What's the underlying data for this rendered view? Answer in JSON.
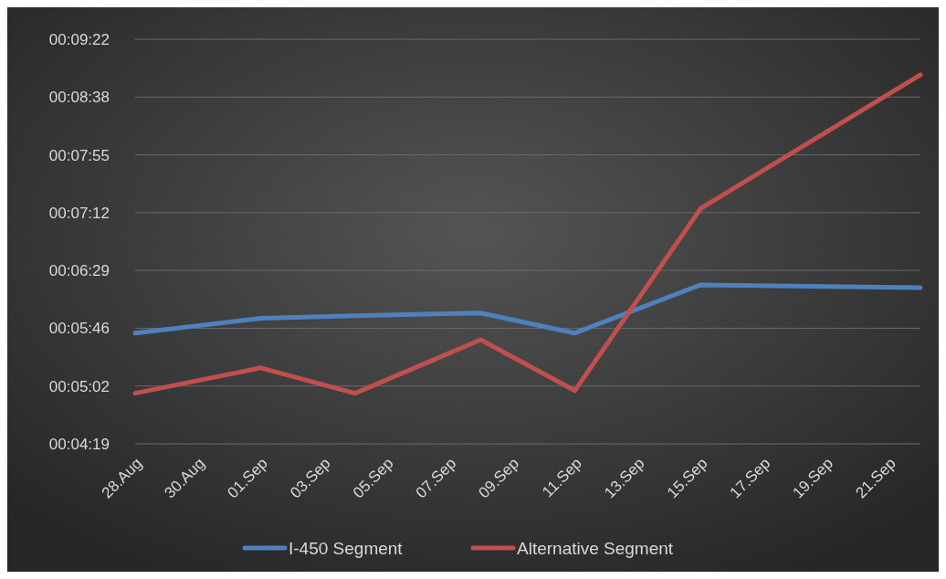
{
  "chart_data": {
    "type": "line",
    "x": [
      "--08-28",
      "--09-01",
      "--09-04",
      "--09-08",
      "--09-11",
      "--09-15",
      "--09-22"
    ],
    "series": [
      {
        "name": "I-450 Segment",
        "color": "#4f81bd",
        "values": [
          342,
          353,
          355,
          357,
          342,
          378,
          376
        ]
      },
      {
        "name": "Alternative Segment",
        "color": "#c0504d",
        "values": [
          297,
          316,
          297,
          337,
          299,
          435,
          535
        ]
      }
    ],
    "xlim": [
      "--08-28",
      "--09-22"
    ],
    "xticks": [
      {
        "value": "--08-28",
        "label": "28.Aug"
      },
      {
        "value": "--08-30",
        "label": "30.Aug"
      },
      {
        "value": "--09-01",
        "label": "01.Sep"
      },
      {
        "value": "--09-03",
        "label": "03.Sep"
      },
      {
        "value": "--09-05",
        "label": "05.Sep"
      },
      {
        "value": "--09-07",
        "label": "07.Sep"
      },
      {
        "value": "--09-09",
        "label": "09.Sep"
      },
      {
        "value": "--09-11",
        "label": "11.Sep"
      },
      {
        "value": "--09-13",
        "label": "13.Sep"
      },
      {
        "value": "--09-15",
        "label": "15.Sep"
      },
      {
        "value": "--09-17",
        "label": "17.Sep"
      },
      {
        "value": "--09-19",
        "label": "19.Sep"
      },
      {
        "value": "--09-21",
        "label": "21.Sep"
      }
    ],
    "ylim": [
      259.2,
      561.6
    ],
    "yticks": [
      {
        "value": 259.2,
        "label": "00:04:19"
      },
      {
        "value": 302.4,
        "label": "00:05:02"
      },
      {
        "value": 345.6,
        "label": "00:05:46"
      },
      {
        "value": 388.8,
        "label": "00:06:29"
      },
      {
        "value": 432,
        "label": "00:07:12"
      },
      {
        "value": 475.2,
        "label": "00:07:55"
      },
      {
        "value": 518.4,
        "label": "00:08:38"
      },
      {
        "value": 561.6,
        "label": "00:09:22"
      }
    ],
    "grid": "y",
    "legend": "bottom",
    "marker": "none",
    "line_style": "solid"
  }
}
